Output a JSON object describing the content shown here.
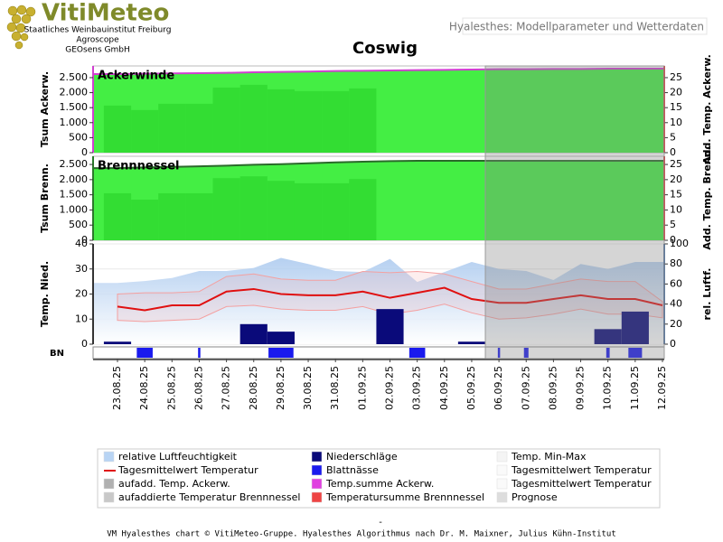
{
  "header": {
    "logo": "VitiMeteo",
    "org": [
      "Staatliches Weinbauinstitut Freiburg",
      "Agroscope",
      "GEOsens GmbH"
    ],
    "page_title": "Hyalesthes: Modellparameter und Wetterdaten",
    "title": "Coswig"
  },
  "prognosis_from": "06.09.25",
  "chart_data": [
    {
      "type": "combo",
      "title": "Ackerwinde",
      "ylabel": "Tsum Ackerw.",
      "y2label": "Add. Temp. Ackerw.",
      "ylim": [
        0,
        2890
      ],
      "yticks": [
        0,
        500,
        {
          "value": 1000,
          "label": "1.000"
        },
        {
          "value": 1500,
          "label": "1.500"
        },
        {
          "value": 2000,
          "label": "2.000"
        },
        {
          "value": 2500,
          "label": "2.500"
        }
      ],
      "y2lim": [
        0,
        28.9
      ],
      "y2ticks": [
        0,
        5,
        10,
        15,
        20,
        25
      ],
      "axis_color": "#d040d0",
      "series": [
        {
          "type": "area",
          "color": "#44ee44",
          "line_color": "#d040d0",
          "values": [
            2620,
            2630,
            2640,
            2650,
            2660,
            2680,
            2690,
            2700,
            2720,
            2730,
            2740,
            2750,
            2760,
            2770,
            2780,
            2780,
            2790,
            2790,
            2800,
            2800,
            2800
          ]
        },
        {
          "type": "bar",
          "axis": "y2",
          "color": "#33dd33",
          "values": [
            15.7,
            14.2,
            16.3,
            16.3,
            21.7,
            22.6,
            21.1,
            20.5,
            20.5,
            21.4,
            null,
            null,
            null,
            null,
            null,
            null,
            null,
            null,
            null,
            null,
            null
          ]
        }
      ]
    },
    {
      "type": "combo",
      "title": "Brennnessel",
      "ylabel": "Tsum Brenn.",
      "y2label": "Add. Temp. Brenn.",
      "ylim": [
        0,
        2770
      ],
      "yticks": [
        0,
        500,
        {
          "value": 1000,
          "label": "1.000"
        },
        {
          "value": 1500,
          "label": "1.500"
        },
        {
          "value": 2000,
          "label": "2.000"
        },
        {
          "value": 2500,
          "label": "2.500"
        }
      ],
      "y2lim": [
        0,
        27.7
      ],
      "y2ticks": [
        0,
        5,
        10,
        15,
        20,
        25
      ],
      "axis_color": "#2a7a2a",
      "series": [
        {
          "type": "area",
          "color": "#44ee44",
          "line_color": "#2a6a2a",
          "values": [
            2380,
            2400,
            2420,
            2440,
            2460,
            2490,
            2510,
            2540,
            2570,
            2590,
            2610,
            2620,
            2620,
            2620,
            2620,
            2620,
            2620,
            2620,
            2620,
            2620,
            2620
          ]
        },
        {
          "type": "bar",
          "axis": "y2",
          "color": "#33dd33",
          "values": [
            15.5,
            13.4,
            15.5,
            15.5,
            20.5,
            21.1,
            19.6,
            18.8,
            18.8,
            20.2,
            null,
            null,
            null,
            null,
            null,
            null,
            null,
            null,
            null,
            null,
            null
          ]
        }
      ]
    },
    {
      "type": "combo",
      "ylabel": "Temp. Nied.",
      "y2label": "rel. Luftf.",
      "bn_label": "BN",
      "grid": true,
      "ylim": [
        0,
        40
      ],
      "yticks": [
        0,
        10,
        20,
        30,
        40
      ],
      "y2lim": [
        0,
        100
      ],
      "y2ticks": [
        0,
        20,
        40,
        60,
        80,
        100
      ],
      "axis_color": "#333333",
      "categories": [
        "23.08.25",
        "24.08.25",
        "25.08.25",
        "26.08.25",
        "27.08.25",
        "28.08.25",
        "29.08.25",
        "30.08.25",
        "31.08.25",
        "01.09.25",
        "02.09.25",
        "03.09.25",
        "04.09.25",
        "05.09.25",
        "06.09.25",
        "07.09.25",
        "08.09.25",
        "09.09.25",
        "10.09.25",
        "11.09.25",
        "12.09.25"
      ],
      "series": [
        {
          "type": "area",
          "axis": "y2",
          "color": "#a9c8ee",
          "values": [
            61,
            63,
            66,
            73,
            73,
            76,
            86,
            80,
            73,
            72,
            85,
            62,
            72,
            82,
            75,
            73,
            64,
            80,
            75,
            82,
            82
          ]
        },
        {
          "type": "band",
          "color": "#f4a0a0",
          "low": [
            9.5,
            9,
            9.5,
            10,
            15,
            15.5,
            14,
            13.5,
            13.5,
            15,
            12,
            13.5,
            16,
            12.5,
            10,
            10.5,
            12,
            14,
            12,
            12,
            10.5
          ],
          "high": [
            20,
            20.5,
            20.5,
            21,
            27,
            28,
            26,
            25.5,
            25.5,
            29,
            28.5,
            29,
            28,
            25,
            22,
            22,
            24,
            26,
            25,
            25,
            17
          ]
        },
        {
          "type": "bar",
          "color": "#0a0a7a",
          "values": [
            1,
            0,
            0,
            0,
            0,
            8,
            5,
            0,
            0,
            0,
            14,
            0,
            0,
            1,
            0,
            0,
            0,
            0,
            6,
            13,
            0
          ]
        },
        {
          "type": "line",
          "color": "#e01010",
          "values": [
            15,
            13.5,
            15.5,
            15.5,
            21,
            22,
            20,
            19.5,
            19.5,
            21,
            18.5,
            20.5,
            22.5,
            18,
            16.5,
            16.5,
            18,
            19.5,
            18,
            18,
            15.5
          ]
        },
        {
          "type": "strip",
          "color": "#1a1aee",
          "values": [
            0,
            14,
            0,
            2,
            0,
            0,
            22,
            0,
            0,
            0,
            0,
            14,
            0,
            0,
            2,
            4,
            0,
            0,
            3,
            12,
            0
          ]
        }
      ]
    }
  ],
  "legend": [
    {
      "name": "relative Luftfeuchtigkeit",
      "color": "#b8d4f4"
    },
    {
      "name": "Tagesmittelwert Temperatur",
      "color": "#e01010",
      "line": true
    },
    {
      "name": "aufadd. Temp. Ackerw.",
      "color": "#b0b0b0"
    },
    {
      "name": "aufaddierte Temperatur Brennnessel",
      "color": "#c8c8c8"
    },
    {
      "name": "Niederschläge",
      "color": "#0a0a7a"
    },
    {
      "name": "Blattnässe",
      "color": "#1a1aee"
    },
    {
      "name": "Temp.summe Ackerw.",
      "color": "#e040e0"
    },
    {
      "name": "Temperatursumme Brennnessel",
      "color": "#ee4444"
    },
    {
      "name": "Temp. Min-Max",
      "color": "#f4f4f4"
    },
    {
      "name": "Tagesmittelwert Temperatur",
      "color": "#fafafa"
    },
    {
      "name": "Tagesmittelwert Temperatur",
      "color": "#fafafa"
    },
    {
      "name": "Prognose",
      "color": "#dddddd"
    }
  ],
  "footer_dash": "-",
  "footer": "VM Hyalesthes chart © VitiMeteo-Gruppe. Hyalesthes Algorithmus nach Dr. M. Maixner, Julius Kühn-Institut"
}
